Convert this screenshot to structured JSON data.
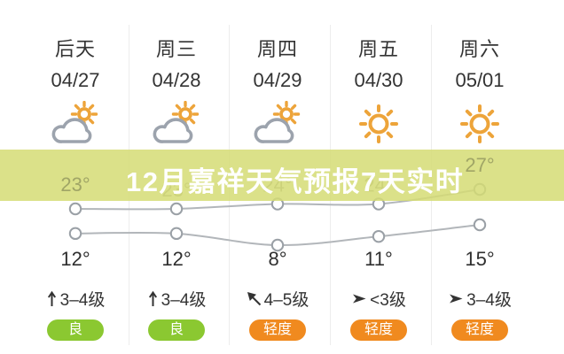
{
  "banner": {
    "text": "12月嘉祥天气预报7天实时",
    "bg_color": "#d5dc74",
    "text_color": "#ffffff"
  },
  "columns": [
    {
      "day": "后天",
      "date": "04/27",
      "icon": "partly-cloudy",
      "high_label": "23°",
      "low_label": "12°",
      "wind_dir": "north",
      "wind": "3–4级",
      "aqi": "良",
      "aqi_color": "#8bc831"
    },
    {
      "day": "周三",
      "date": "04/28",
      "icon": "partly-cloudy",
      "high_label": "",
      "low_label": "12°",
      "wind_dir": "north",
      "wind": "3–4级",
      "aqi": "良",
      "aqi_color": "#8bc831"
    },
    {
      "day": "周四",
      "date": "04/29",
      "icon": "partly-cloudy",
      "high_label": "",
      "low_label": "8°",
      "wind_dir": "northwest",
      "wind": "4–5级",
      "aqi": "轻度",
      "aqi_color": "#f08a1f"
    },
    {
      "day": "周五",
      "date": "04/30",
      "icon": "sunny",
      "high_label": "",
      "low_label": "11°",
      "wind_dir": "east",
      "wind": "<3级",
      "aqi": "轻度",
      "aqi_color": "#f08a1f"
    },
    {
      "day": "周六",
      "date": "05/01",
      "icon": "sunny",
      "high_label": "27°",
      "low_label": "15°",
      "wind_dir": "east",
      "wind": "3–4级",
      "aqi": "轻度",
      "aqi_color": "#f08a1f"
    }
  ],
  "chart_data": {
    "type": "line",
    "categories": [
      "04/27",
      "04/28",
      "04/29",
      "04/30",
      "05/01"
    ],
    "series": [
      {
        "name": "high-temp",
        "values": [
          23,
          23,
          24,
          24,
          27
        ],
        "visible_labels": [
          "23°",
          null,
          null,
          null,
          "27°"
        ],
        "note_obscured_indexes": [
          1,
          2,
          3
        ]
      },
      {
        "name": "low-temp",
        "values": [
          12,
          12,
          8,
          11,
          15
        ],
        "visible_labels": [
          "12°",
          "12°",
          "8°",
          "11°",
          "15°"
        ]
      }
    ],
    "line_color": "#b2b6ba",
    "marker": "open-circle",
    "marker_stroke": "#9aa0a6",
    "grid": "off",
    "legend": "none"
  },
  "icon_colors": {
    "sun": "#eda43a",
    "cloud_stroke": "#9ca3ad",
    "arrow": "#333333"
  }
}
